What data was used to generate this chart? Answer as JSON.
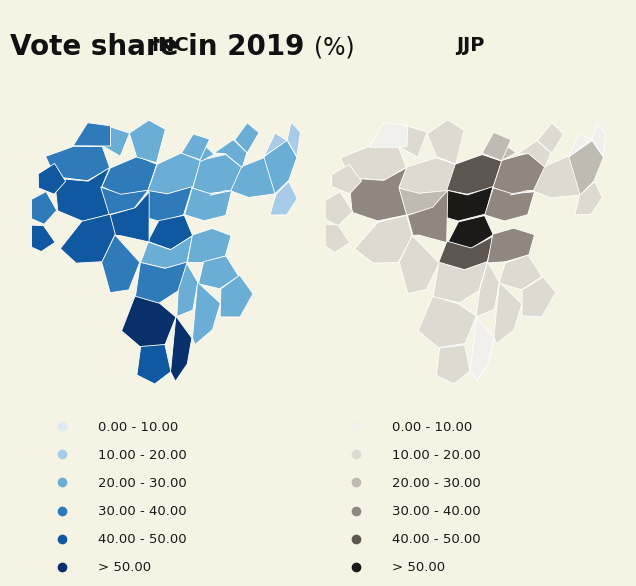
{
  "title_bold": "Vote share in 2019 ",
  "title_normal": "(%)",
  "subtitle_left": "INC",
  "subtitle_right": "JJP",
  "background_color": "#F5F3E4",
  "inc_colors": [
    "#DDEAF5",
    "#A8CBE8",
    "#6AAED6",
    "#2F7AB9",
    "#1058A0",
    "#08316B"
  ],
  "jjp_colors": [
    "#F2F0EC",
    "#DEDAD2",
    "#C0BBB2",
    "#908880",
    "#5C5550",
    "#1C1A18"
  ],
  "legend_labels": [
    "0.00 - 10.00",
    "10.00 - 20.00",
    "20.00 - 30.00",
    "30.00 - 40.00",
    "40.00 - 50.00",
    "> 50.00"
  ],
  "title_fontsize": 20,
  "subtitle_fontsize": 14,
  "legend_fontsize": 9.5,
  "legend_dot_size": 7
}
